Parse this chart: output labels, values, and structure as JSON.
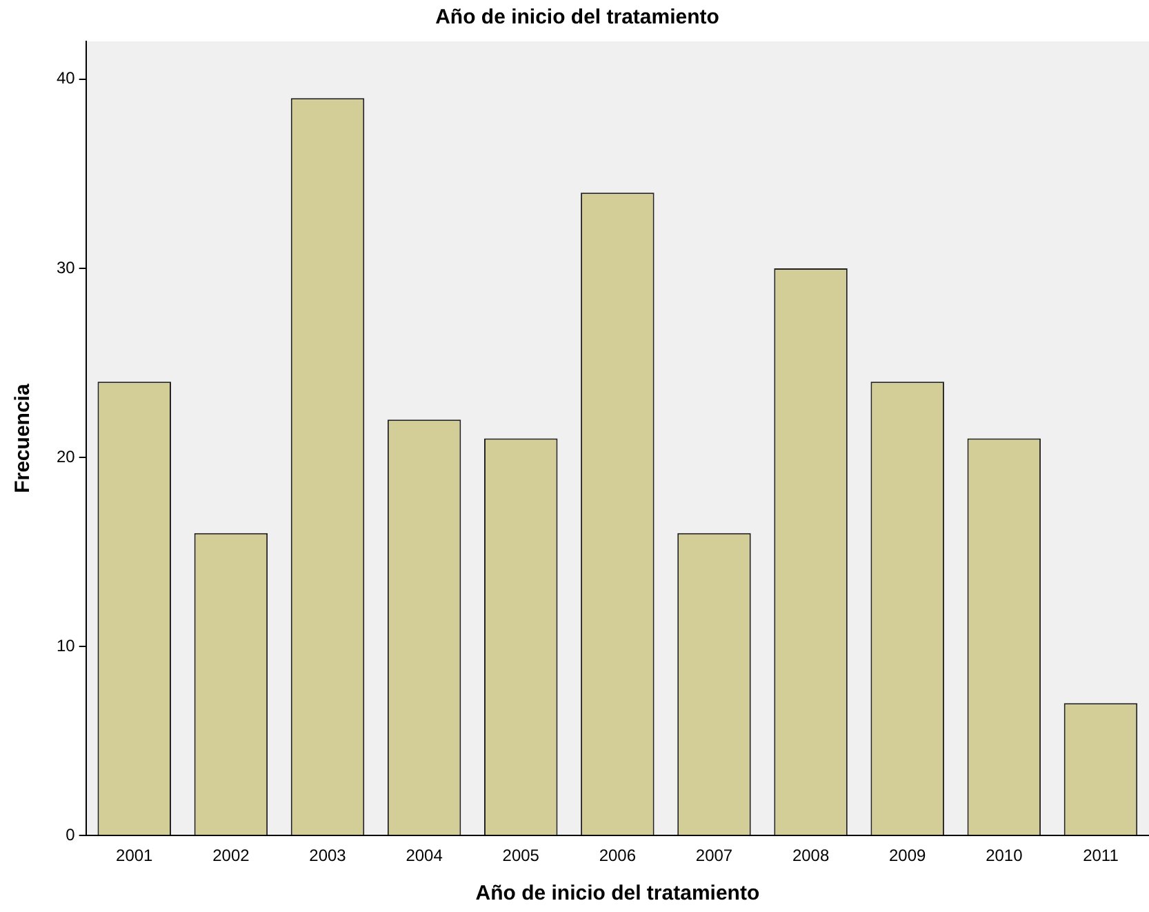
{
  "chart_data": {
    "type": "bar",
    "title": "Año de inicio del tratamiento",
    "xlabel": "Año de inicio del tratamiento",
    "ylabel": "Frecuencia",
    "categories": [
      "2001",
      "2002",
      "2003",
      "2004",
      "2005",
      "2006",
      "2007",
      "2008",
      "2009",
      "2010",
      "2011"
    ],
    "values": [
      24,
      16,
      39,
      22,
      21,
      34,
      16,
      30,
      24,
      21,
      7
    ],
    "color": "#d3ce97",
    "ylim": [
      0,
      42
    ],
    "yticks": [
      0,
      10,
      20,
      30,
      40
    ],
    "grid": false,
    "legend": false
  }
}
